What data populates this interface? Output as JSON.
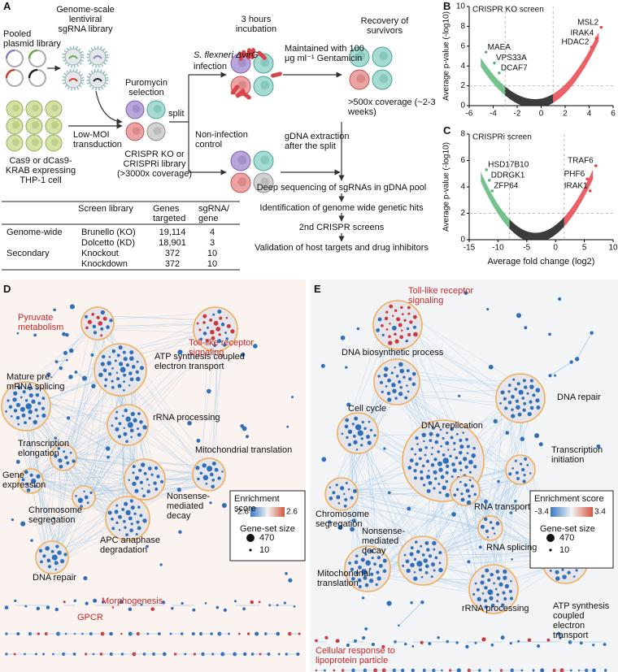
{
  "panel_labels": [
    "A",
    "B",
    "C",
    "D",
    "E"
  ],
  "panel_a": {
    "texts": [
      "Pooled plasmid library",
      "Genome-scale lentiviral sgRNA library",
      "Puromycin selection",
      "Low-MOI transduction",
      "Cas9 or dCas9-KRAB expressing THP-1 cell",
      "CRISPR KO or CRISPRi library (>3000x coverage)",
      "split",
      "S. flexneri ΔvirG",
      "infection",
      "Non-infection control",
      "3 hours incubation",
      "Maintained with 100 μg ml⁻¹ Gentamicin",
      "Recovery of survivors",
      ">500x coverage (~2-3 weeks)",
      "gDNA extraction after the split",
      "Deep sequencing of sgRNAs in gDNA pool",
      "Identification of genome wide genetic hits",
      "2nd CRISPR screens",
      "Validation of host targets and drug inhibitors"
    ],
    "table": {
      "header": [
        "Screen library",
        "Genes targeted",
        "sgRNA/ gene"
      ],
      "groups": [
        {
          "name": "Genome-wide",
          "rows": [
            [
              "Brunello (KO)",
              "19,114",
              4
            ],
            [
              "Dolcetto (KD)",
              "18,901",
              3
            ]
          ]
        },
        {
          "name": "Secondary",
          "rows": [
            [
              "Knockout",
              372,
              10
            ],
            [
              "Knockdown",
              372,
              10
            ]
          ]
        }
      ]
    }
  },
  "chart_data": [
    {
      "type": "scatter",
      "title": "CRISPR KO screen",
      "y_label": "Average p-value (-log10)",
      "xlim": [
        -6,
        6
      ],
      "xticks": [
        -6,
        -4,
        -2,
        0,
        2,
        4,
        6
      ],
      "ylim": [
        0,
        10
      ],
      "yticks": [
        0,
        2,
        4,
        6,
        8,
        10
      ],
      "threshold_x": [
        -3,
        1
      ],
      "threshold_y": 2,
      "colors": [
        "#5cb878",
        "#1a1a1a",
        "#e8454c"
      ],
      "point_labels": [
        "MSL2",
        "IRAK4",
        "HDAC2",
        "MAEA",
        "VPS33A",
        "DCAF7"
      ],
      "x": [
        5.0,
        4.6,
        4.2,
        -4.6,
        -3.9,
        -3.5
      ],
      "values": [
        7.9,
        6.8,
        5.9,
        5.4,
        4.3,
        3.3
      ]
    },
    {
      "type": "scatter",
      "title": "CRISPRi screen",
      "y_label": "Average p-value (-log10)",
      "x_label": "Average fold change (log2)",
      "xlim": [
        -15,
        10
      ],
      "xticks": [
        -15,
        -10,
        -5,
        0,
        5,
        10
      ],
      "ylim": [
        0,
        8
      ],
      "yticks": [
        0,
        2,
        4,
        6,
        8
      ],
      "threshold_x": [
        -8,
        1.5
      ],
      "threshold_y": 2,
      "colors": [
        "#5cb878",
        "#1a1a1a",
        "#e8454c"
      ],
      "point_labels": [
        "HSD17B10",
        "DDRGK1",
        "ZFP64",
        "TRAF6",
        "PHF6",
        "IRAK1"
      ],
      "x": [
        -12,
        -11.5,
        -11,
        7,
        5.5,
        6
      ],
      "values": [
        5.3,
        4.5,
        3.7,
        5.6,
        4.6,
        3.7
      ]
    }
  ],
  "network_d": {
    "labels": [
      {
        "text": "Pyruvate metabolism",
        "color": "#c62828"
      },
      {
        "text": "Toll-like receptor signaling",
        "color": "#c62828"
      },
      {
        "text": "Mature pre-mRNA splicing"
      },
      {
        "text": "ATP synthesis coupled electron transport"
      },
      {
        "text": "rRNA processing"
      },
      {
        "text": "Transcription elongation"
      },
      {
        "text": "Gene expression"
      },
      {
        "text": "Mitochondrial translation"
      },
      {
        "text": "Nonsense-mediated decay"
      },
      {
        "text": "Chromosome segregation"
      },
      {
        "text": "APC anaphase degradation"
      },
      {
        "text": "DNA repair"
      },
      {
        "text": "Morphogenesis",
        "color": "#c62828"
      },
      {
        "text": "GPCR",
        "color": "#c62828"
      }
    ],
    "legend": {
      "title": "Enrichment score",
      "range": [
        -2.6,
        2.6
      ],
      "size_title": "Gene-set size",
      "sizes": [
        470,
        10
      ]
    }
  },
  "network_e": {
    "labels": [
      {
        "text": "Toll-like receptor signaling",
        "color": "#c62828"
      },
      {
        "text": "DNA biosynthetic process"
      },
      {
        "text": "DNA repair"
      },
      {
        "text": "Cell cycle"
      },
      {
        "text": "DNA replication"
      },
      {
        "text": "Transcription initiation"
      },
      {
        "text": "Chromosome segregation"
      },
      {
        "text": "RNA transport"
      },
      {
        "text": "Nonsense-mediated decay"
      },
      {
        "text": "RNA splicing"
      },
      {
        "text": "Mitochondrial translation"
      },
      {
        "text": "rRNA processing"
      },
      {
        "text": "ATP synthesis coupled electron transport"
      },
      {
        "text": "Cellular response to lipoprotein particle",
        "color": "#c62828"
      }
    ],
    "legend": {
      "title": "Enrichment score",
      "range": [
        -3.4,
        3.4
      ],
      "size_title": "Gene-set size",
      "sizes": [
        470,
        10
      ]
    }
  }
}
